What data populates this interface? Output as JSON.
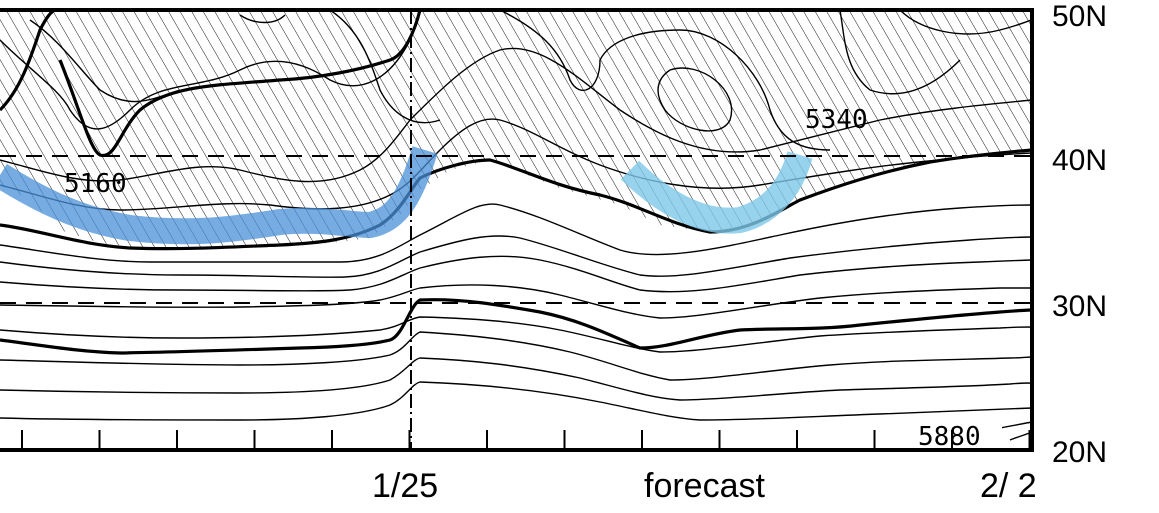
{
  "chart_data": {
    "type": "contour",
    "y_axis": {
      "unit_labels": [
        "50N",
        "40N",
        "30N",
        "20N"
      ],
      "lat_values": [
        50,
        40,
        30,
        20
      ],
      "range": [
        20,
        50
      ]
    },
    "x_axis": {
      "labels": [
        "1/25",
        "forecast",
        "2/ 2"
      ],
      "markers": [
        "analysis boundary at 1/25"
      ]
    },
    "contour_labels": [
      "5160",
      "5340",
      "5880"
    ],
    "hatched_region": "north of the bold contour (~40N)",
    "highlights": [
      {
        "name": "trough-1",
        "color": "#4a90d9"
      },
      {
        "name": "trough-2",
        "color": "#7ec8ea"
      }
    ],
    "dashed_gridlines": [
      40,
      30
    ]
  },
  "colors": {
    "line": "#000000",
    "highlight_dark": "#4a90d9",
    "highlight_light": "#7ec8ea"
  }
}
